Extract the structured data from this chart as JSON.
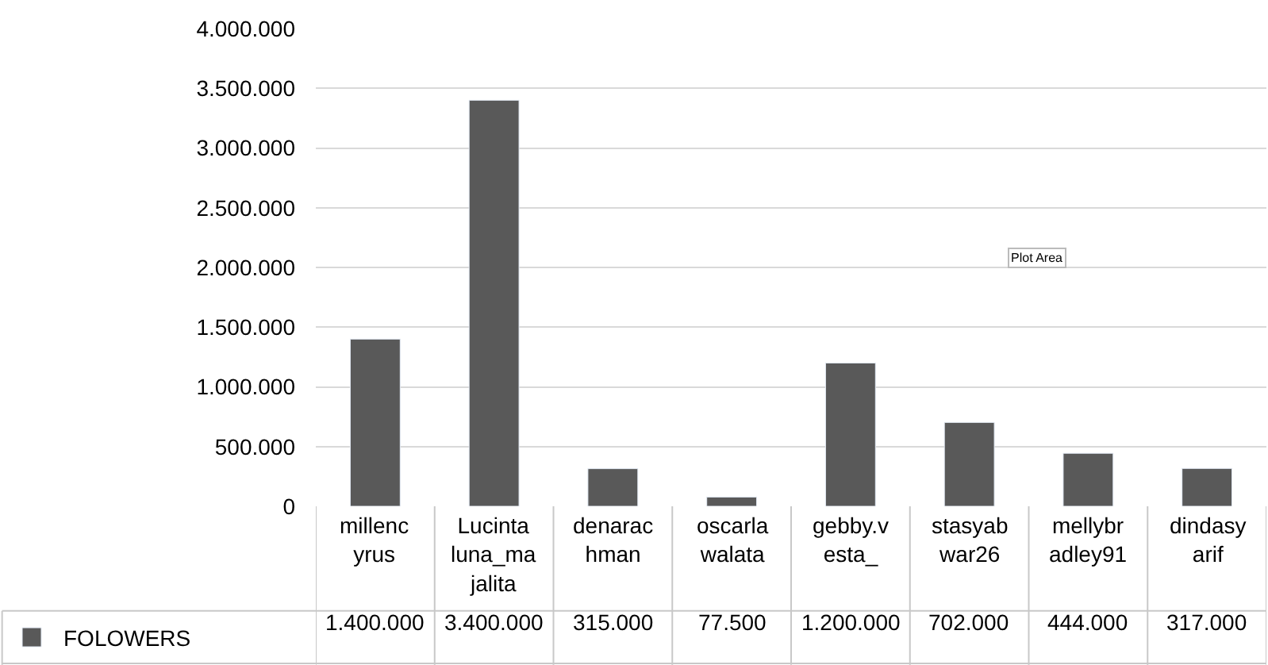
{
  "chart_data": {
    "type": "bar",
    "categories": [
      "millencyrus",
      "Lucintaluna_majalita",
      "denarachman",
      "oscarlawalata",
      "gebby.vesta_",
      "stasyabwar26",
      "mellybradley91",
      "dindasyarif"
    ],
    "series": [
      {
        "name": "FOLOWERS",
        "color": "#595959",
        "values": [
          1400000,
          3400000,
          315000,
          77500,
          1200000,
          702000,
          444000,
          317000
        ]
      }
    ],
    "value_labels": [
      "1.400.000",
      "3.400.000",
      "315.000",
      "77.500",
      "1.200.000",
      "702.000",
      "444.000",
      "317.000"
    ],
    "ylim": [
      0,
      4000000
    ],
    "yticks": [
      0,
      {
        "value": 500000,
        "label": "500.000"
      },
      {
        "value": 1000000,
        "label": "1.000.000"
      },
      {
        "value": 1500000,
        "label": "1.500.000"
      },
      {
        "value": 2000000,
        "label": "2.000.000"
      },
      {
        "value": 2500000,
        "label": "2.500.000"
      },
      {
        "value": 3000000,
        "label": "3.000.000"
      },
      {
        "value": 3500000,
        "label": "3.500.000"
      },
      {
        "value": 4000000,
        "label": "4.000.000"
      }
    ],
    "grid": "y",
    "legend": "bottom left",
    "annotations": [
      "Plot Area"
    ]
  }
}
